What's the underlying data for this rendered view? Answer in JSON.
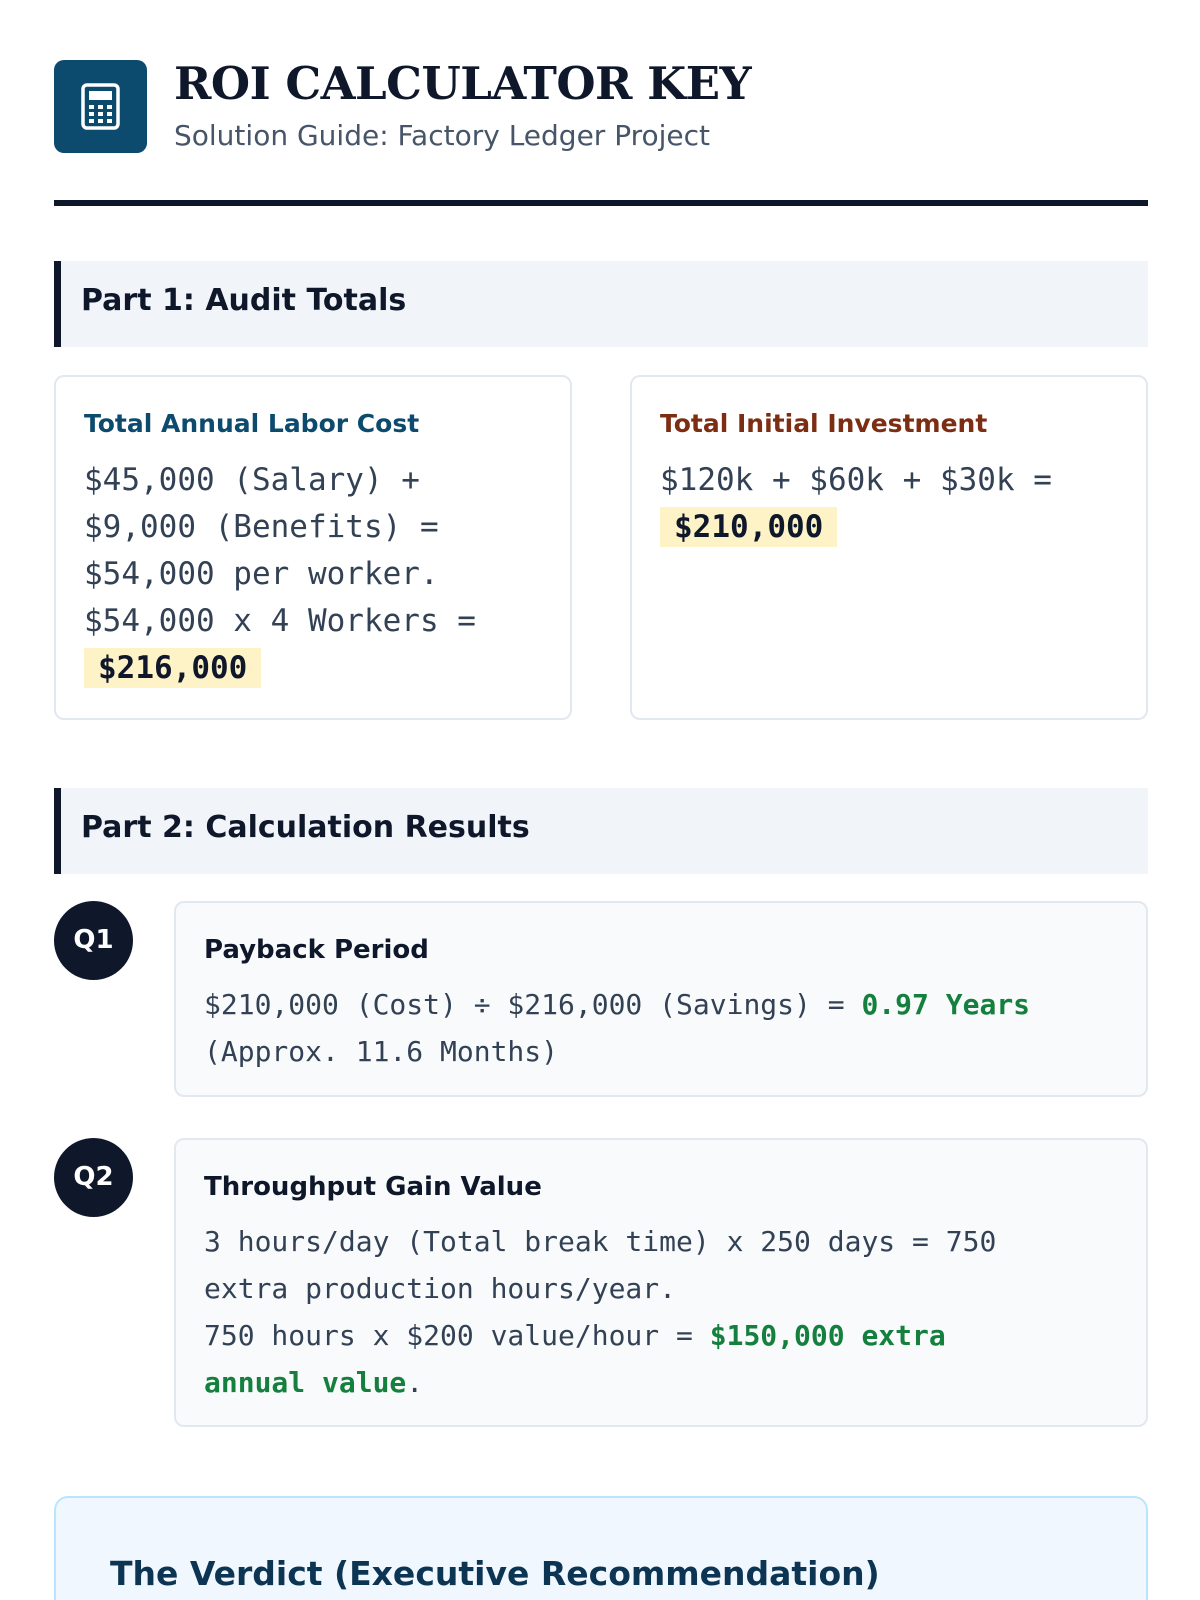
{
  "header": {
    "icon": "calculator-icon",
    "title": "ROI CALCULATOR KEY",
    "subtitle": "Solution Guide: Factory Ledger Project"
  },
  "part1": {
    "heading": "Part 1: Audit Totals",
    "labor": {
      "label": "Total Annual Labor Cost",
      "label_color": "#0c4a6e",
      "line1": "$45,000 (Salary) +",
      "line2": "$9,000 (Benefits) =",
      "line3": "$54,000 per worker.",
      "line4": "$54,000 x 4 Workers =",
      "result": "$216,000"
    },
    "investment": {
      "label": "Total Initial Investment",
      "label_color": "#7c2d12",
      "line1": "$120k + $60k + $30k =",
      "result": "$210,000"
    }
  },
  "part2": {
    "heading": "Part 2: Calculation Results",
    "q1": {
      "badge": "Q1",
      "title": "Payback Period",
      "line1_text": "$210,000 (Cost) ÷ $216,000 (Savings) = ",
      "line1_result": "0.97 Years",
      "line2_text": "(Approx. 11.6 Months)"
    },
    "q2": {
      "badge": "Q2",
      "title": "Throughput Gain Value",
      "line1_text": "3 hours/day (Total break time) x 250 days = 750",
      "line2_text": "extra production hours/year.",
      "line3_text": "750 hours x $200 value/hour = ",
      "line3_result": "$150,000 extra",
      "line4_result": "annual value",
      "line4_tail": "."
    }
  },
  "verdict": {
    "title": "The Verdict (Executive Recommendation)"
  },
  "colors": {
    "accent": "#0c4a6e",
    "highlight": "#fef3c7",
    "success": "#15803d",
    "dark": "#0f172a"
  }
}
